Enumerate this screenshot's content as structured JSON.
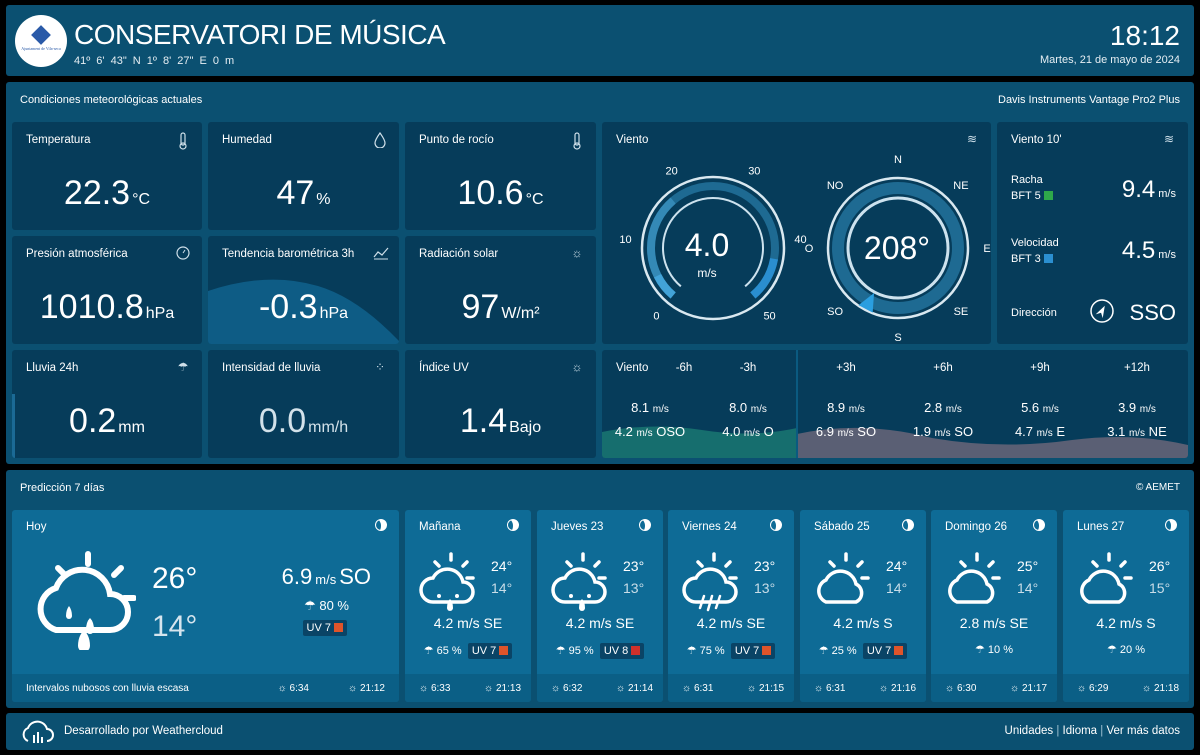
{
  "header": {
    "title": "CONSERVATORI DE MÚSICA",
    "coords": "41º 6' 43\" N   1º 8' 27\" E   0 m",
    "time": "18:12",
    "date": "Martes, 21 de mayo de 2024",
    "logo_text": "Ajuntament de Vila-seca"
  },
  "current": {
    "section_title": "Condiciones meteorológicas actuales",
    "device": "Davis Instruments Vantage Pro2 Plus",
    "temperature": {
      "label": "Temperatura",
      "value": "22.3",
      "unit": "°C"
    },
    "humidity": {
      "label": "Humedad",
      "value": "47",
      "unit": "%"
    },
    "dewpoint": {
      "label": "Punto de rocío",
      "value": "10.6",
      "unit": "°C"
    },
    "pressure": {
      "label": "Presión atmosférica",
      "value": "1010.8",
      "unit": "hPa"
    },
    "trend": {
      "label": "Tendencia barométrica 3h",
      "value": "-0.3",
      "unit": "hPa"
    },
    "solar": {
      "label": "Radiación solar",
      "value": "97",
      "unit": "W/m²"
    },
    "rain": {
      "label": "Lluvia 24h",
      "value": "0.2",
      "unit": "mm"
    },
    "rainrate": {
      "label": "Intensidad de lluvia",
      "value": "0.0",
      "unit": "mm/h"
    },
    "uv": {
      "label": "Índice UV",
      "value": "1.4",
      "unit": "Bajo"
    }
  },
  "wind": {
    "label": "Viento",
    "speed": "4.0",
    "speed_unit": "m/s",
    "speed_fraction": 0.08,
    "scale": [
      "0",
      "10",
      "20",
      "30",
      "40",
      "50"
    ],
    "direction": "208°",
    "direction_degrees": 208,
    "compass": [
      "N",
      "NE",
      "E",
      "SE",
      "S",
      "SO",
      "O",
      "NO"
    ]
  },
  "wind10": {
    "label": "Viento 10'",
    "gust_label": "Racha",
    "gust_bft": "BFT 5",
    "gust_value": "9.4",
    "gust_unit": "m/s",
    "gust_color": "#2ea84a",
    "speed_label": "Velocidad",
    "speed_bft": "BFT 3",
    "speed_value": "4.5",
    "speed_unit": "m/s",
    "speed_color": "#2b8fd0",
    "dir_label": "Dirección",
    "dir_value": "SSO"
  },
  "wind_forecast": {
    "label": "Viento",
    "cols": [
      {
        "h": "-6h",
        "gust": "8.1",
        "speed": "4.2",
        "dir": "OSO"
      },
      {
        "h": "-3h",
        "gust": "8.0",
        "speed": "4.0",
        "dir": "O"
      },
      {
        "h": "+3h",
        "gust": "8.9",
        "speed": "6.9",
        "dir": "SO"
      },
      {
        "h": "+6h",
        "gust": "2.8",
        "speed": "1.9",
        "dir": "SO"
      },
      {
        "h": "+9h",
        "gust": "5.6",
        "speed": "4.7",
        "dir": "E"
      },
      {
        "h": "+12h",
        "gust": "3.9",
        "speed": "3.1",
        "dir": "NE"
      }
    ],
    "unit": "m/s"
  },
  "forecast": {
    "section_title": "Predicción 7 días",
    "source": "© AEMET",
    "today": {
      "day": "Hoy",
      "max": "26°",
      "min": "14°",
      "wind": "6.9",
      "wind_unit": "m/s",
      "wind_dir": "SO",
      "rain": "80 %",
      "uv": "UV 7",
      "desc": "Intervalos nubosos con lluvia escasa",
      "sunrise": "6:34",
      "sunset": "21:12"
    },
    "days": [
      {
        "day": "Mañana",
        "max": "24°",
        "min": "14°",
        "wind": "4.2 m/s SE",
        "rain": "65 %",
        "uv": "UV 7",
        "uv_color": "#e0542a",
        "sunrise": "6:33",
        "sunset": "21:13",
        "icon": "rain"
      },
      {
        "day": "Jueves 23",
        "max": "23°",
        "min": "13°",
        "wind": "4.2 m/s SE",
        "rain": "95 %",
        "uv": "UV 8",
        "uv_color": "#d0302a",
        "sunrise": "6:32",
        "sunset": "21:14",
        "icon": "rain"
      },
      {
        "day": "Viernes 24",
        "max": "23°",
        "min": "13°",
        "wind": "4.2 m/s SE",
        "rain": "75 %",
        "uv": "UV 7",
        "uv_color": "#e0542a",
        "sunrise": "6:31",
        "sunset": "21:15",
        "icon": "storm"
      },
      {
        "day": "Sábado 25",
        "max": "24°",
        "min": "14°",
        "wind": "4.2 m/s S",
        "rain": "25 %",
        "uv": "UV 7",
        "uv_color": "#e0542a",
        "sunrise": "6:31",
        "sunset": "21:16",
        "icon": "cloud"
      },
      {
        "day": "Domingo 26",
        "max": "25°",
        "min": "14°",
        "wind": "2.8 m/s SE",
        "rain": "10 %",
        "uv": "",
        "uv_color": "",
        "sunrise": "6:30",
        "sunset": "21:17",
        "icon": "cloud"
      },
      {
        "day": "Lunes 27",
        "max": "26°",
        "min": "15°",
        "wind": "4.2 m/s S",
        "rain": "20 %",
        "uv": "",
        "uv_color": "",
        "sunrise": "6:29",
        "sunset": "21:18",
        "icon": "cloud"
      }
    ]
  },
  "footer": {
    "credit": "Desarrollado por Weathercloud",
    "links": [
      "Unidades",
      "Idioma",
      "Ver más datos"
    ]
  }
}
